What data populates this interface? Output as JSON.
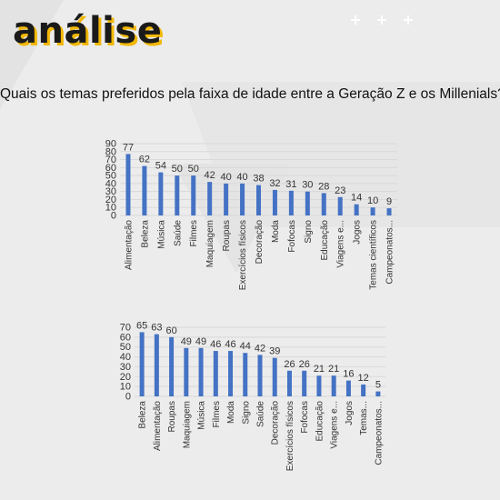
{
  "header": {
    "title": "análise",
    "question": "Quais os temas preferidos pela faixa de idade entre a Geração Z e os Millenials?"
  },
  "colors": {
    "bar": "#4472c4",
    "accent": "#f2b705",
    "grid": "#d9d9d9",
    "background": "#ececec"
  },
  "chart_data": [
    {
      "type": "bar",
      "title": "",
      "xlabel": "",
      "ylabel": "",
      "ylim": [
        0,
        90
      ],
      "yticks": [
        0,
        10,
        20,
        30,
        40,
        50,
        60,
        70,
        80,
        90
      ],
      "grid": true,
      "categories": [
        "Alimentação",
        "Beleza",
        "Música",
        "Saúde",
        "Filmes",
        "Maquiagem",
        "Roupas",
        "Exercícios físicos",
        "Decoração",
        "Moda",
        "Fofocas",
        "Signo",
        "Educação",
        "Viagens e...",
        "Jogos",
        "Temas científicos",
        "Campeonatos..."
      ],
      "values": [
        77,
        62,
        54,
        50,
        50,
        42,
        40,
        40,
        38,
        32,
        31,
        30,
        28,
        23,
        14,
        10,
        9
      ]
    },
    {
      "type": "bar",
      "title": "",
      "xlabel": "",
      "ylabel": "",
      "ylim": [
        0,
        70
      ],
      "yticks": [
        0,
        10,
        20,
        30,
        40,
        50,
        60,
        70
      ],
      "grid": true,
      "categories": [
        "Beleza",
        "Alimentação",
        "Roupas",
        "Maquiagem",
        "Música",
        "Filmes",
        "Moda",
        "Signo",
        "Saúde",
        "Decoração",
        "Exercícios físicos",
        "Fofocas",
        "Educação",
        "Viagens e...",
        "Jogos",
        "Temas...",
        "Campeonatos..."
      ],
      "values": [
        65,
        63,
        60,
        49,
        49,
        46,
        46,
        44,
        42,
        39,
        26,
        26,
        21,
        21,
        16,
        12,
        5
      ]
    }
  ]
}
